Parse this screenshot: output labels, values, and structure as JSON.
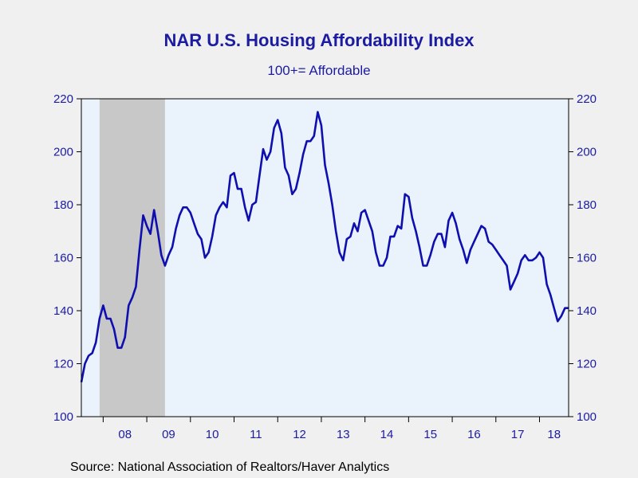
{
  "chart_data": {
    "type": "line",
    "title": "NAR U.S. Housing Affordability Index",
    "subtitle": "100+= Affordable",
    "source": "Source:  National Association of Realtors/Haver Analytics",
    "xlabel": "",
    "ylabel": "",
    "ylim": [
      100,
      220
    ],
    "yticks": [
      100,
      120,
      140,
      160,
      180,
      200,
      220
    ],
    "xlim": [
      2007.5,
      2018.667
    ],
    "xtick_labels": [
      "08",
      "09",
      "10",
      "11",
      "12",
      "13",
      "14",
      "15",
      "16",
      "17",
      "18"
    ],
    "xtick_years": [
      2008,
      2009,
      2010,
      2011,
      2012,
      2013,
      2014,
      2015,
      2016,
      2017,
      2018
    ],
    "recession": {
      "start": 2007.917,
      "end": 2009.417
    },
    "grid": false,
    "colors": {
      "line": "#0f0fb0",
      "plot_background": "#eaf3fb",
      "recession_shade": "#c8c8c8",
      "text": "#1c1ca0"
    },
    "series": [
      {
        "x": [
          2007.5,
          2007.583,
          2007.667,
          2007.75,
          2007.833,
          2007.917,
          2008.0,
          2008.083,
          2008.167,
          2008.25,
          2008.333,
          2008.417,
          2008.5,
          2008.583,
          2008.667,
          2008.75,
          2008.833,
          2008.917,
          2009.0,
          2009.083,
          2009.167,
          2009.25,
          2009.333,
          2009.417,
          2009.5,
          2009.583,
          2009.667,
          2009.75,
          2009.833,
          2009.917,
          2010.0,
          2010.083,
          2010.167,
          2010.25,
          2010.333,
          2010.417,
          2010.5,
          2010.583,
          2010.667,
          2010.75,
          2010.833,
          2010.917,
          2011.0,
          2011.083,
          2011.167,
          2011.25,
          2011.333,
          2011.417,
          2011.5,
          2011.583,
          2011.667,
          2011.75,
          2011.833,
          2011.917,
          2012.0,
          2012.083,
          2012.167,
          2012.25,
          2012.333,
          2012.417,
          2012.5,
          2012.583,
          2012.667,
          2012.75,
          2012.833,
          2012.917,
          2013.0,
          2013.083,
          2013.167,
          2013.25,
          2013.333,
          2013.417,
          2013.5,
          2013.583,
          2013.667,
          2013.75,
          2013.833,
          2013.917,
          2014.0,
          2014.083,
          2014.167,
          2014.25,
          2014.333,
          2014.417,
          2014.5,
          2014.583,
          2014.667,
          2014.75,
          2014.833,
          2014.917,
          2015.0,
          2015.083,
          2015.167,
          2015.25,
          2015.333,
          2015.417,
          2015.5,
          2015.583,
          2015.667,
          2015.75,
          2015.833,
          2015.917,
          2016.0,
          2016.083,
          2016.167,
          2016.25,
          2016.333,
          2016.417,
          2016.5,
          2016.583,
          2016.667,
          2016.75,
          2016.833,
          2016.917,
          2017.0,
          2017.083,
          2017.167,
          2017.25,
          2017.333,
          2017.417,
          2017.5,
          2017.583,
          2017.667,
          2017.75,
          2017.833,
          2017.917,
          2018.0,
          2018.083,
          2018.167,
          2018.25,
          2018.333,
          2018.417,
          2018.5,
          2018.583,
          2018.667
        ],
        "values": [
          113,
          120,
          123,
          124,
          128,
          137,
          142,
          137,
          137,
          133,
          126,
          126,
          130,
          142,
          145,
          149,
          163,
          176,
          172,
          169,
          178,
          170,
          161,
          157,
          161,
          164,
          171,
          176,
          179,
          179,
          177,
          173,
          169,
          167,
          160,
          162,
          168,
          176,
          179,
          181,
          179,
          191,
          192,
          186,
          186,
          179,
          174,
          180,
          181,
          191,
          201,
          197,
          200,
          209,
          212,
          207,
          194,
          191,
          184,
          186,
          192,
          199,
          204,
          204,
          206,
          215,
          210,
          195,
          188,
          180,
          170,
          162,
          159,
          167,
          168,
          173,
          170,
          177,
          178,
          174,
          170,
          162,
          157,
          157,
          160,
          168,
          168,
          172,
          171,
          184,
          183,
          175,
          170,
          164,
          157,
          157,
          161,
          166,
          169,
          169,
          164,
          174,
          177,
          173,
          167,
          163,
          158,
          163,
          166,
          169,
          172,
          171,
          166,
          165,
          163,
          161,
          159,
          157,
          148,
          151,
          154,
          159,
          161,
          159,
          159,
          160,
          162,
          160,
          150,
          146,
          141,
          136,
          138,
          141,
          141
        ]
      }
    ]
  }
}
